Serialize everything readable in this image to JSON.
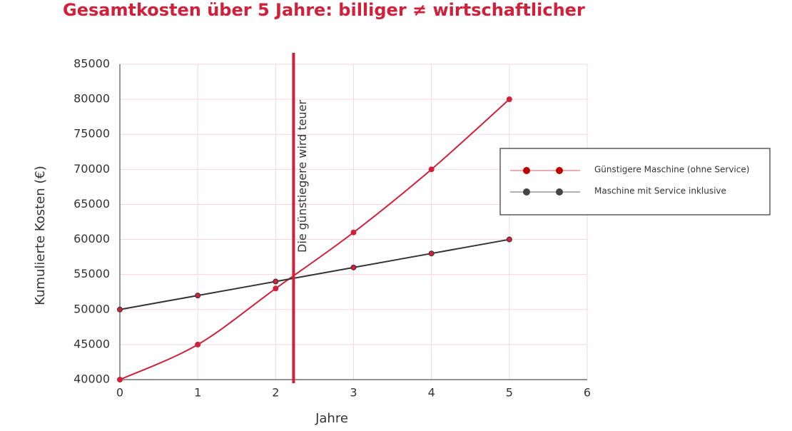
{
  "chart_data": {
    "type": "line",
    "title": "Gesamtkosten über 5 Jahre: billiger ≠ wirtschaftlicher",
    "x_label": "Jahre",
    "y_label": "Kumulierte Kosten (€)",
    "x": [
      0,
      1,
      2,
      3,
      4,
      5
    ],
    "series": [
      {
        "name": "Günstigere Maschine (ohne Service)",
        "color": "#d0203a",
        "values": [
          40000,
          45000,
          53000,
          61000,
          70000,
          80000
        ]
      },
      {
        "name": "Maschine mit Service inklusive",
        "color": "#333333",
        "values": [
          50000,
          52000,
          54000,
          56000,
          58000,
          60000
        ]
      }
    ],
    "xlim": [
      0,
      6
    ],
    "xticks": [
      0,
      1,
      2,
      3,
      4,
      5,
      6
    ],
    "ylim": [
      40000,
      85000
    ],
    "yticks": [
      40000,
      45000,
      50000,
      55000,
      60000,
      65000,
      70000,
      75000,
      80000,
      85000
    ],
    "grid": true,
    "smooth": true,
    "legend": "right",
    "annotation": {
      "text": "Die günstiegere wird teuer",
      "x": 2.23,
      "color": "#d0203a"
    }
  }
}
